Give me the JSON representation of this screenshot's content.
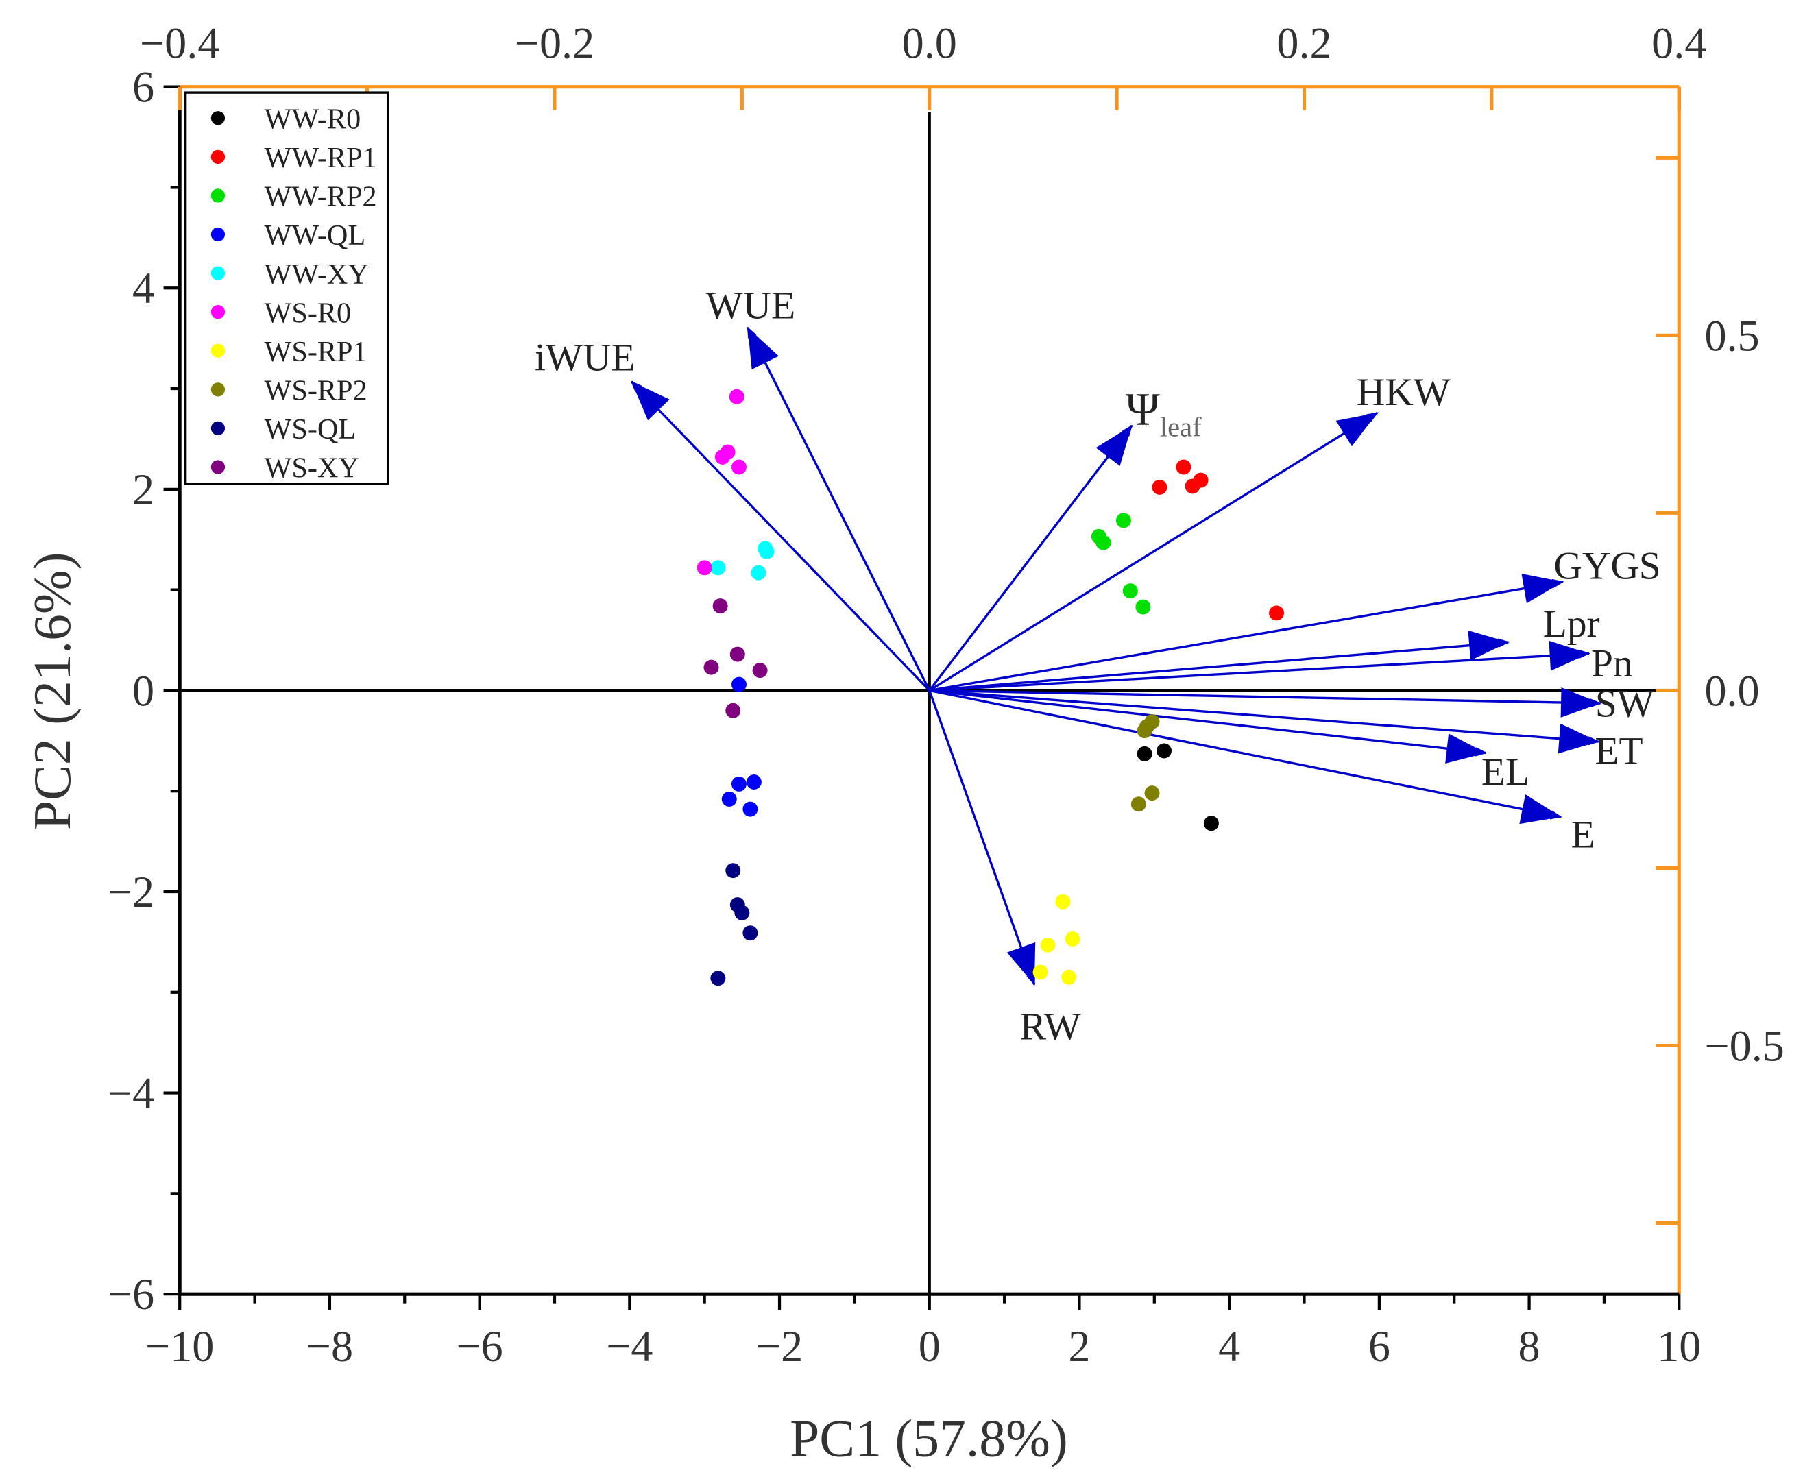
{
  "chart_data": {
    "type": "scatter",
    "subtype": "pca-biplot",
    "xlabel": "PC1 (57.8%)",
    "ylabel": "PC2 (21.6%)",
    "xlim": [
      -10,
      10
    ],
    "ylim": [
      -6,
      6
    ],
    "x_ticks": [
      "-10",
      "-8",
      "-6",
      "-4",
      "-2",
      "0",
      "2",
      "4",
      "6",
      "8",
      "10"
    ],
    "y_ticks": [
      "-6",
      "-4",
      "-2",
      "0",
      "2",
      "4",
      "6"
    ],
    "top_axis": {
      "lim": [
        -0.4,
        0.4
      ],
      "ticks": [
        "-0.4",
        "-0.2",
        "0.0",
        "0.2",
        "0.4"
      ]
    },
    "right_axis": {
      "lim": [
        -0.85,
        0.85
      ],
      "ticks": [
        "-0.5",
        "0.0",
        "0.5"
      ]
    },
    "secondary_axis_color": "#f7941d",
    "loading_color": "#0000cc",
    "legend_position": "top-left",
    "series": [
      {
        "name": "WW-R0",
        "color": "#000000",
        "points": [
          [
            2.87,
            -0.63
          ],
          [
            3.13,
            -0.6
          ],
          [
            3.76,
            -1.32
          ]
        ]
      },
      {
        "name": "WW-RP1",
        "color": "#ff0000",
        "points": [
          [
            3.07,
            2.02
          ],
          [
            3.39,
            2.22
          ],
          [
            3.51,
            2.03
          ],
          [
            3.62,
            2.09
          ],
          [
            4.63,
            0.77
          ]
        ]
      },
      {
        "name": "WW-RP2",
        "color": "#00e000",
        "points": [
          [
            2.26,
            1.53
          ],
          [
            2.32,
            1.47
          ],
          [
            2.59,
            1.69
          ],
          [
            2.68,
            0.99
          ],
          [
            2.85,
            0.83
          ]
        ]
      },
      {
        "name": "WW-QL",
        "color": "#0000ff",
        "points": [
          [
            -2.54,
            -0.93
          ],
          [
            -2.34,
            -0.91
          ],
          [
            -2.67,
            -1.08
          ],
          [
            -2.39,
            -1.18
          ],
          [
            -2.54,
            0.06
          ]
        ]
      },
      {
        "name": "WW-XY",
        "color": "#00ffff",
        "points": [
          [
            -2.82,
            1.22
          ],
          [
            -2.19,
            1.41
          ],
          [
            -2.17,
            1.38
          ],
          [
            -2.28,
            1.17
          ]
        ]
      },
      {
        "name": "WS-R0",
        "color": "#ff00ff",
        "points": [
          [
            -2.57,
            2.92
          ],
          [
            -2.69,
            2.37
          ],
          [
            -2.76,
            2.32
          ],
          [
            -2.54,
            2.22
          ],
          [
            -3.0,
            1.22
          ]
        ]
      },
      {
        "name": "WS-RP1",
        "color": "#ffff00",
        "points": [
          [
            1.78,
            -2.1
          ],
          [
            1.58,
            -2.53
          ],
          [
            1.91,
            -2.47
          ],
          [
            1.86,
            -2.85
          ],
          [
            1.48,
            -2.8
          ]
        ]
      },
      {
        "name": "WS-RP2",
        "color": "#808000",
        "points": [
          [
            2.97,
            -0.31
          ],
          [
            2.9,
            -0.36
          ],
          [
            2.79,
            -1.13
          ],
          [
            2.97,
            -1.02
          ],
          [
            2.87,
            -0.4
          ]
        ]
      },
      {
        "name": "WS-QL",
        "color": "#000080",
        "points": [
          [
            -2.62,
            -1.79
          ],
          [
            -2.56,
            -2.13
          ],
          [
            -2.5,
            -2.21
          ],
          [
            -2.39,
            -2.41
          ],
          [
            -2.82,
            -2.86
          ]
        ]
      },
      {
        "name": "WS-XY",
        "color": "#800080",
        "points": [
          [
            -2.79,
            0.84
          ],
          [
            -2.56,
            0.36
          ],
          [
            -2.91,
            0.23
          ],
          [
            -2.26,
            0.2
          ],
          [
            -2.62,
            -0.2
          ]
        ]
      }
    ],
    "loadings": [
      {
        "name": "iWUE",
        "x": -0.159,
        "y": 0.435
      },
      {
        "name": "WUE",
        "x": -0.097,
        "y": 0.511
      },
      {
        "name": "Ψ",
        "sub": "leaf",
        "x": 0.108,
        "y": 0.373
      },
      {
        "name": "HKW",
        "x": 0.239,
        "y": 0.391
      },
      {
        "name": "GYGS",
        "x": 0.338,
        "y": 0.153
      },
      {
        "name": "Lpr",
        "x": 0.309,
        "y": 0.068
      },
      {
        "name": "Pn",
        "x": 0.352,
        "y": 0.052
      },
      {
        "name": "SW",
        "x": 0.358,
        "y": -0.018
      },
      {
        "name": "ET",
        "x": 0.357,
        "y": -0.072
      },
      {
        "name": "EL",
        "x": 0.297,
        "y": -0.088
      },
      {
        "name": "E",
        "x": 0.337,
        "y": -0.178
      },
      {
        "name": "RW",
        "x": 0.056,
        "y": -0.414
      }
    ]
  }
}
